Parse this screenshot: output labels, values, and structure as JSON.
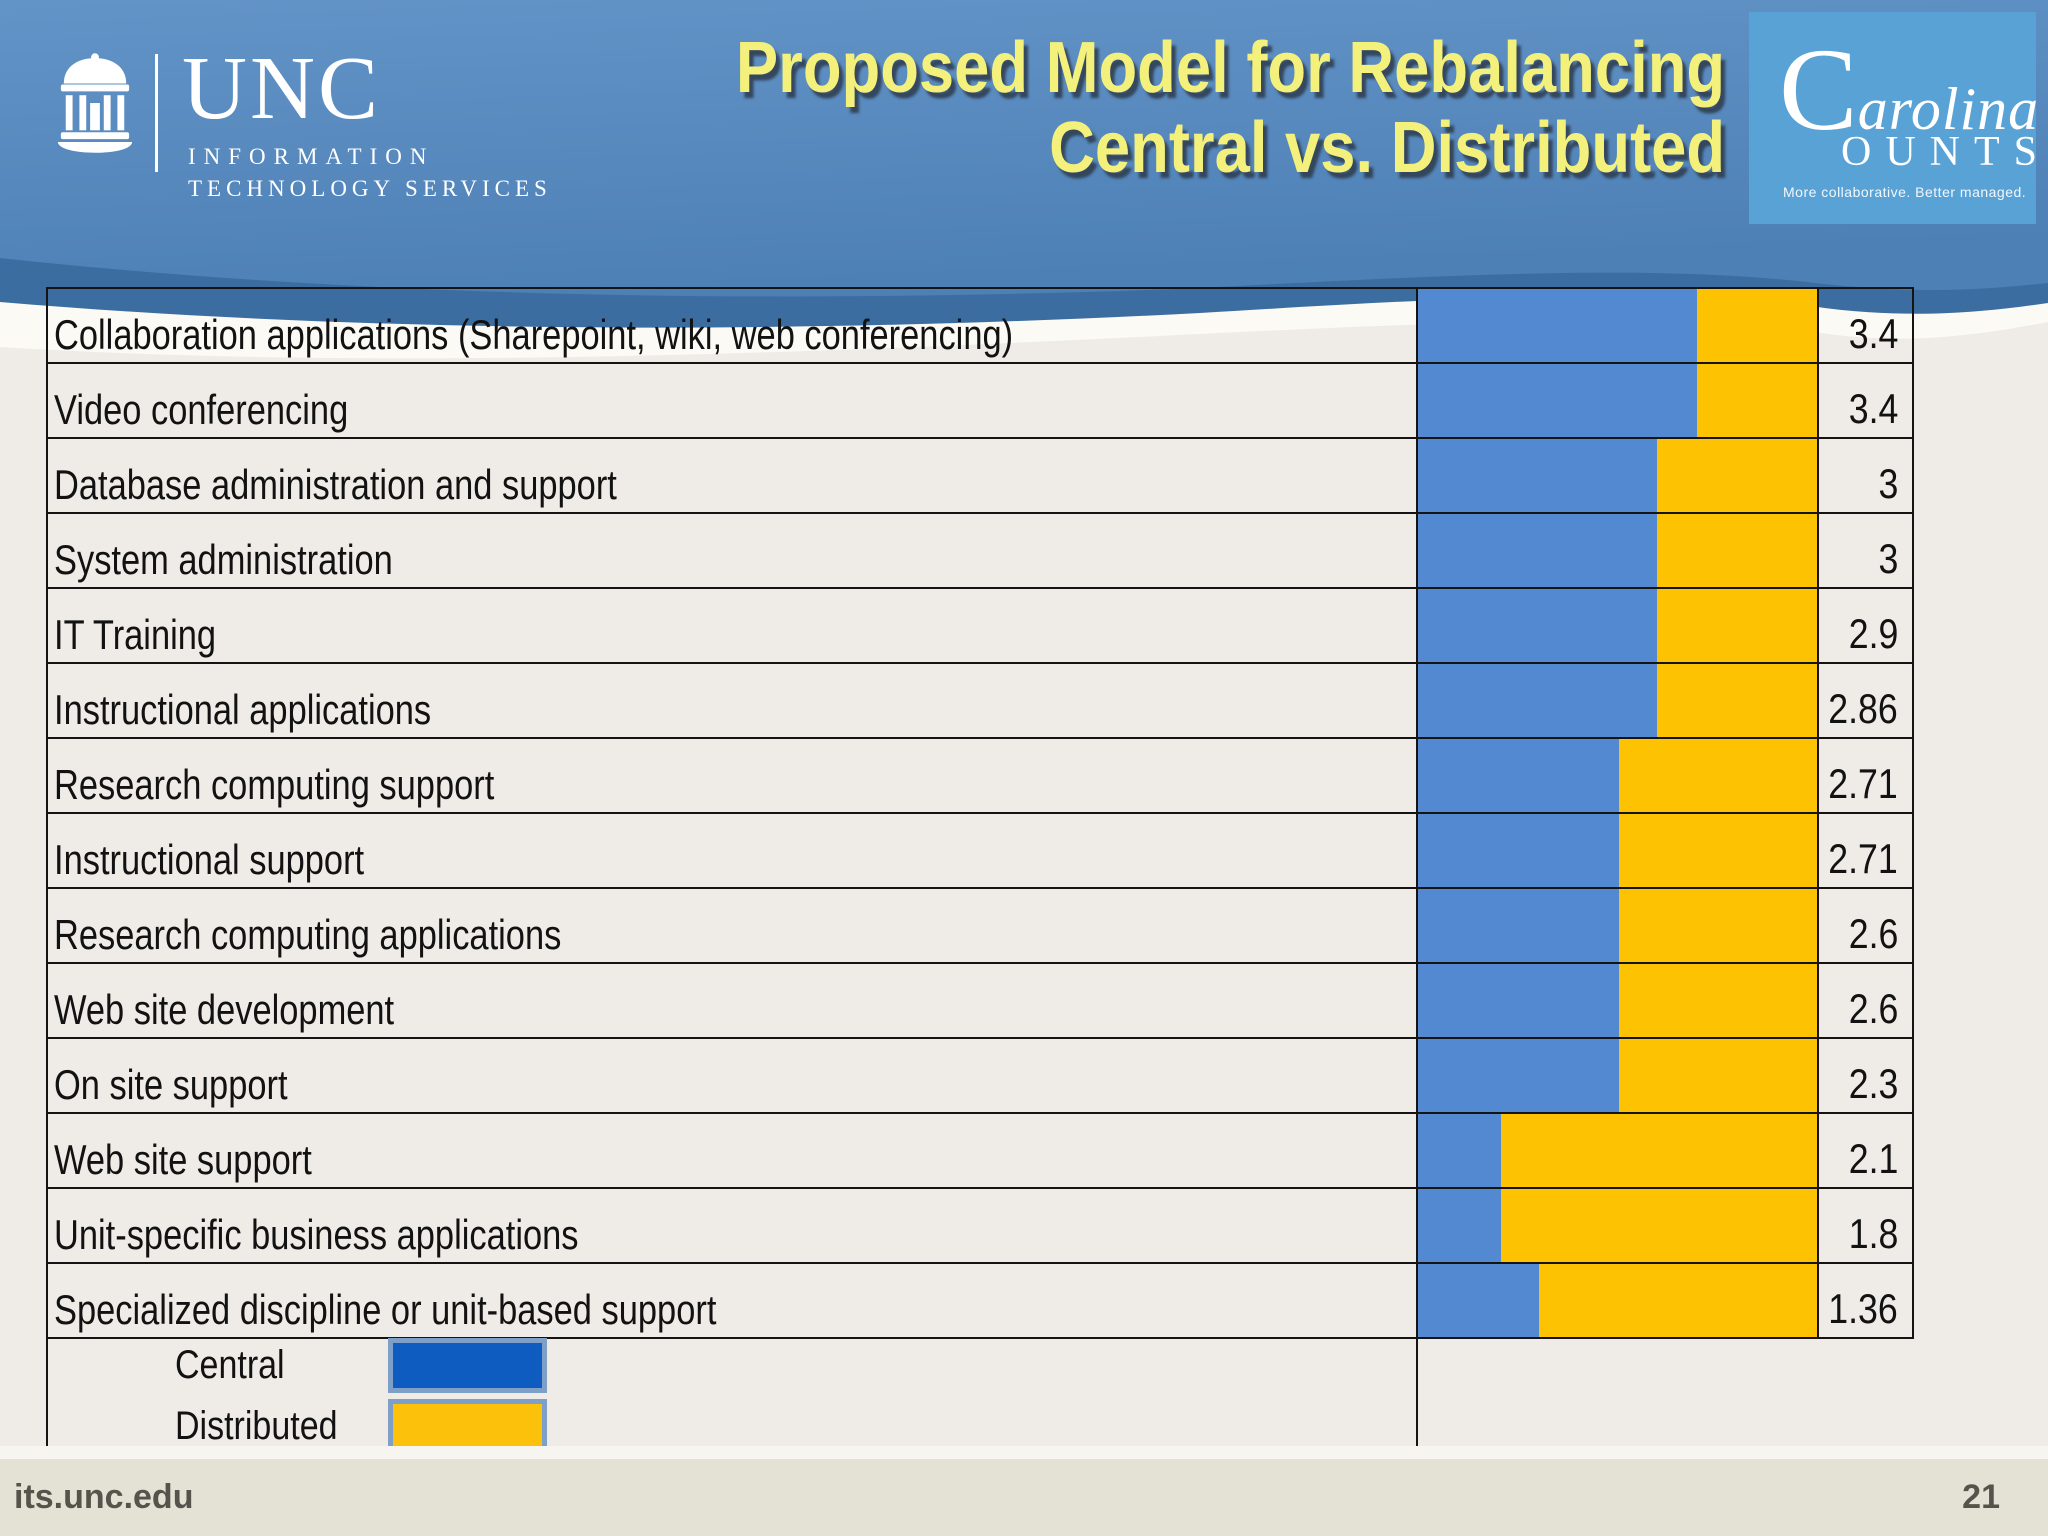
{
  "slide": {
    "title_line1": "Proposed Model for Rebalancing",
    "title_line2": "Central vs. Distributed",
    "footer_url": "its.unc.edu",
    "page_number": "21"
  },
  "unc_logo": {
    "acronym": "UNC",
    "dept_line1": "INFORMATION",
    "dept_line2": "TECHNOLOGY SERVICES"
  },
  "carolina_counts": {
    "c_initial": "C",
    "rest": "arolina",
    "counts": "OUNTS",
    "tagline": "More collaborative. Better managed."
  },
  "colors": {
    "bar_central": "#5289d1",
    "bar_distributed": "#fdc303",
    "legend_central": "#0f5cc0",
    "legend_distributed": "#fcc10a",
    "legend_border": "#7e9fc7",
    "header_blue": "#5b8cc0",
    "header_band_dark": "#3c6da1",
    "body_bg": "#efece7",
    "footer_bg": "#e4e2d5",
    "title_yellow": "#f4f07c"
  },
  "legend": {
    "items": [
      {
        "label": "Central",
        "color": "#0f5cc0"
      },
      {
        "label": "Distributed",
        "color": "#fcc10a"
      }
    ]
  },
  "chart_data": {
    "type": "bar",
    "subtype": "horizontal_stacked_100pct",
    "title": "Proposed Model for Rebalancing Central vs. Distributed",
    "legend_position": "bottom-left",
    "grid": false,
    "categories": [
      "Collaboration applications (Sharepoint, wiki, web conferencing)",
      "Video conferencing",
      "Database administration and support",
      "System administration",
      "IT Training",
      "Instructional applications",
      "Research computing support",
      "Instructional support",
      "Research computing applications",
      "Web site development",
      "On site support",
      "Web site support",
      "Unit-specific business applications",
      "Specialized discipline or unit-based support"
    ],
    "values_display": [
      "3.4",
      "3.4",
      "3",
      "3",
      "2.9",
      "2.86",
      "2.71",
      "2.71",
      "2.6",
      "2.6",
      "2.3",
      "2.1",
      "1.8",
      "1.36"
    ],
    "series": [
      {
        "name": "Central",
        "fractions": [
          0.7,
          0.7,
          0.6,
          0.6,
          0.6,
          0.6,
          0.505,
          0.505,
          0.505,
          0.505,
          0.505,
          0.207,
          0.207,
          0.303
        ]
      },
      {
        "name": "Distributed",
        "fractions": [
          0.3,
          0.3,
          0.4,
          0.4,
          0.4,
          0.4,
          0.495,
          0.495,
          0.495,
          0.495,
          0.495,
          0.793,
          0.793,
          0.697
        ]
      }
    ]
  }
}
